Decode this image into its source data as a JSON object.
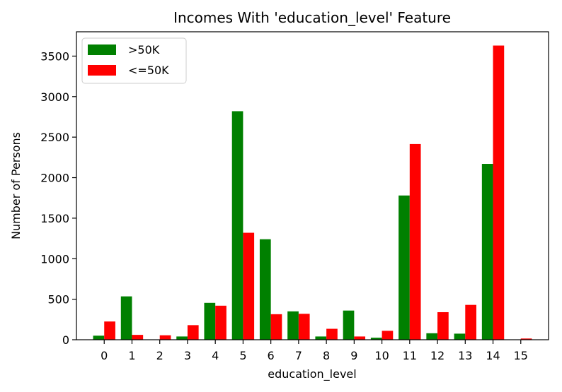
{
  "chart_data": {
    "type": "bar",
    "title": "Incomes With 'education_level' Feature",
    "xlabel": "education_level",
    "ylabel": "Number of Persons",
    "categories": [
      "0",
      "1",
      "2",
      "3",
      "4",
      "5",
      "6",
      "7",
      "8",
      "9",
      "10",
      "11",
      "12",
      "13",
      "14",
      "15"
    ],
    "series": [
      {
        "name": ">50K",
        "color": "#008000",
        "values": [
          50,
          535,
          0,
          40,
          455,
          2820,
          1240,
          350,
          40,
          360,
          25,
          1780,
          80,
          75,
          2170,
          0
        ]
      },
      {
        "name": "<=50K",
        "color": "#ff0000",
        "values": [
          225,
          60,
          55,
          180,
          420,
          1320,
          315,
          320,
          135,
          40,
          110,
          2415,
          340,
          430,
          3630,
          15
        ]
      }
    ],
    "ylim": [
      0,
      3800
    ],
    "yticks": [
      0,
      500,
      1000,
      1500,
      2000,
      2500,
      3000,
      3500
    ],
    "legend": "top-left",
    "grid": false
  }
}
